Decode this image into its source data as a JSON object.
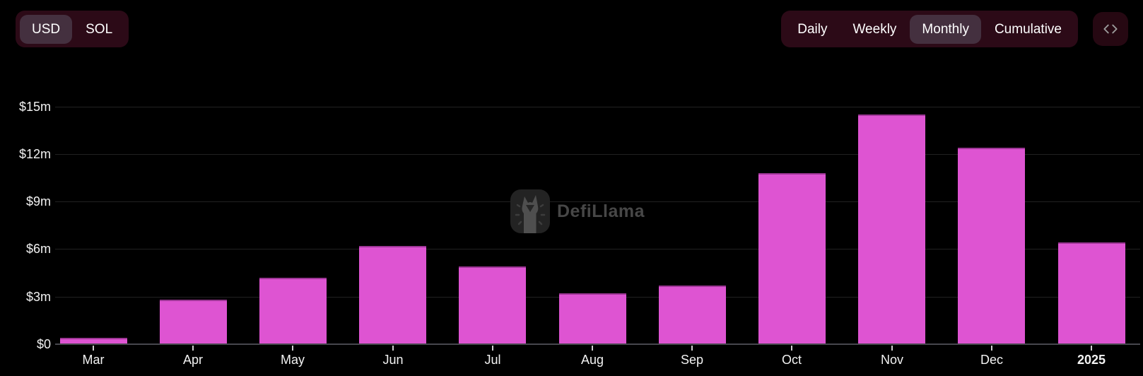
{
  "toolbar": {
    "currency_toggle": {
      "options": [
        "USD",
        "SOL"
      ],
      "selected": "USD"
    },
    "interval_toggle": {
      "options": [
        "Daily",
        "Weekly",
        "Monthly",
        "Cumulative"
      ],
      "selected": "Monthly"
    },
    "embed_button": {
      "icon": "code-icon"
    }
  },
  "watermark": {
    "text": "DefiLlama",
    "icon": "defillama-llama-icon"
  },
  "chart_data": {
    "type": "bar",
    "title": "",
    "categories": [
      "Mar",
      "Apr",
      "May",
      "Jun",
      "Jul",
      "Aug",
      "Sep",
      "Oct",
      "Nov",
      "Dec",
      "2025"
    ],
    "values": [
      0.4,
      2.8,
      4.2,
      6.2,
      4.9,
      3.2,
      3.7,
      10.8,
      14.5,
      12.4,
      6.4
    ],
    "unit": "USD millions",
    "emphasized_category": "2025",
    "y_axis": {
      "tick_labels": [
        "$15m",
        "$12m",
        "$9m",
        "$6m",
        "$3m",
        "$0"
      ],
      "tick_values": [
        15,
        12,
        9,
        6,
        3,
        0
      ],
      "max": 16.8
    },
    "grid": true,
    "legend": false,
    "bar_color": "#de54d2"
  },
  "colors": {
    "background": "#000000",
    "pill_background": "#2c0a17",
    "pill_selected": "#44303f",
    "bar": "#de54d2",
    "gridline": "#212121",
    "axis_line": "#47474d",
    "text": "#f2f2f2",
    "watermark_text": "#474747"
  }
}
